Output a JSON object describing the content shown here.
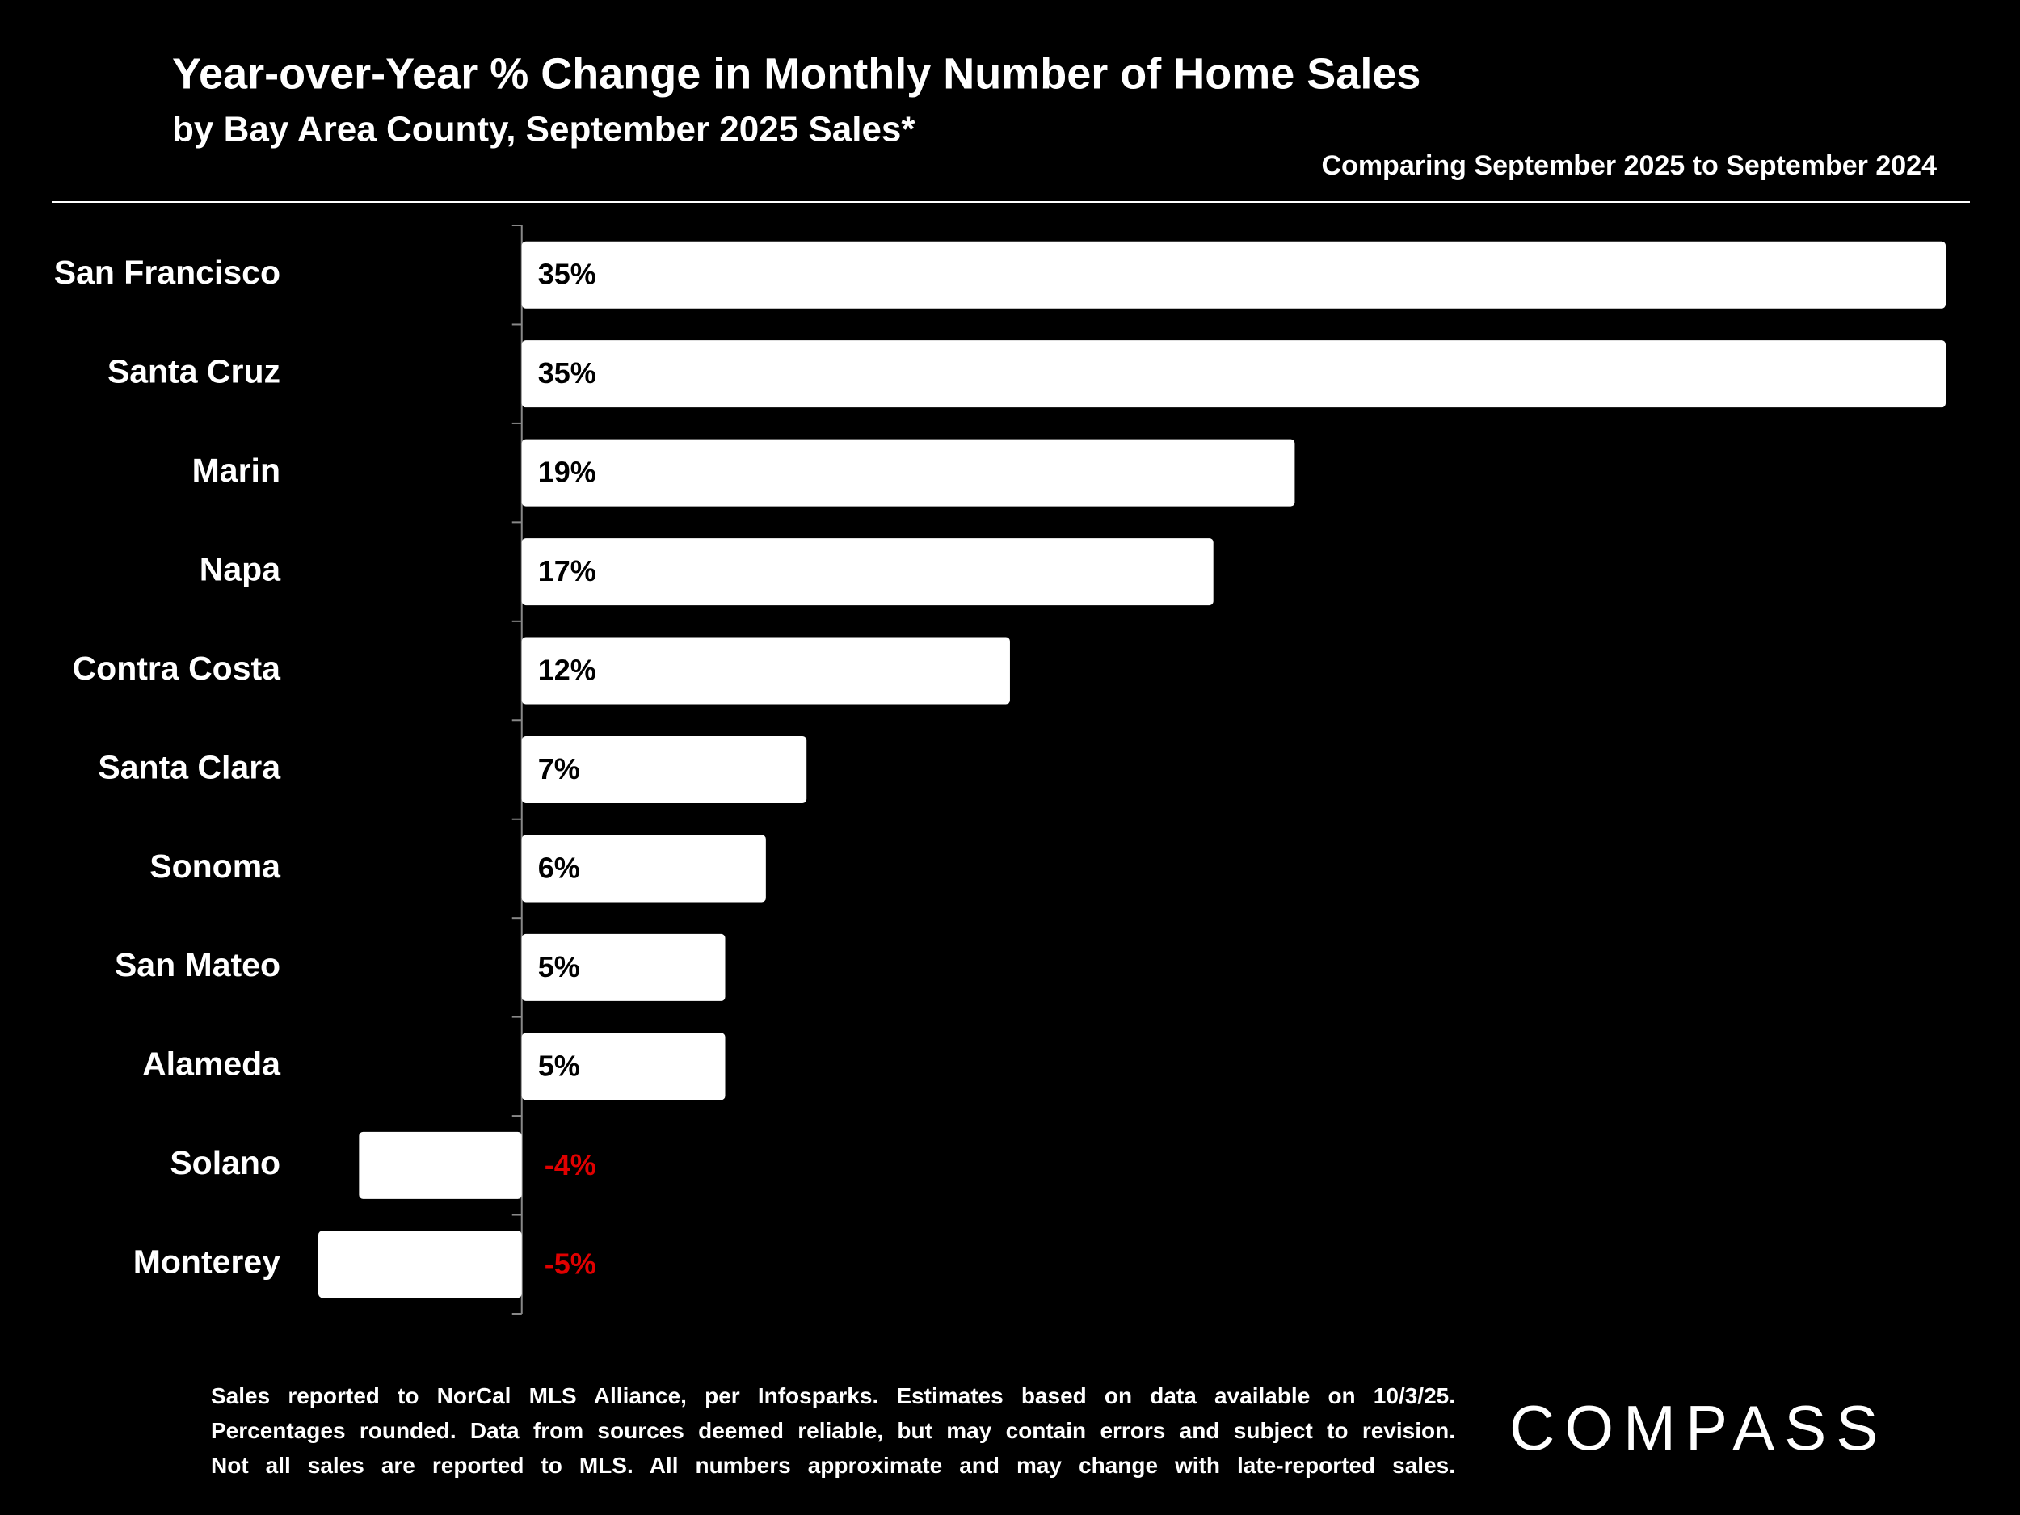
{
  "chart_data": {
    "type": "bar",
    "orientation": "horizontal",
    "title": "Year-over-Year % Change in Monthly Number of Home Sales",
    "subtitle": "by Bay Area County, September 2025 Sales*",
    "annotation": "Comparing September 2025 to September 2024",
    "categories": [
      "San Francisco",
      "Santa Cruz",
      "Marin",
      "Napa",
      "Contra Costa",
      "Santa Clara",
      "Sonoma",
      "San Mateo",
      "Alameda",
      "Solano",
      "Monterey"
    ],
    "values": [
      35,
      35,
      19,
      17,
      12,
      7,
      6,
      5,
      5,
      -4,
      -5
    ],
    "value_labels": [
      "35%",
      "35%",
      "19%",
      "17%",
      "12%",
      "7%",
      "6%",
      "5%",
      "5%",
      "-4%",
      "-5%"
    ],
    "color": "#ffffff",
    "negative_label_color": "#e00000",
    "xlim": [
      -5,
      35
    ],
    "grid": false
  },
  "footer": {
    "note_lines": [
      "Sales reported to NorCal MLS Alliance, per Infosparks. Estimates based on data available on 10/3/25.",
      "Percentages rounded. Data from sources deemed reliable, but may contain errors and subject to revision.",
      "Not all sales are reported to MLS. All numbers approximate and may change with late-reported sales."
    ],
    "brand": "COMPASS"
  }
}
